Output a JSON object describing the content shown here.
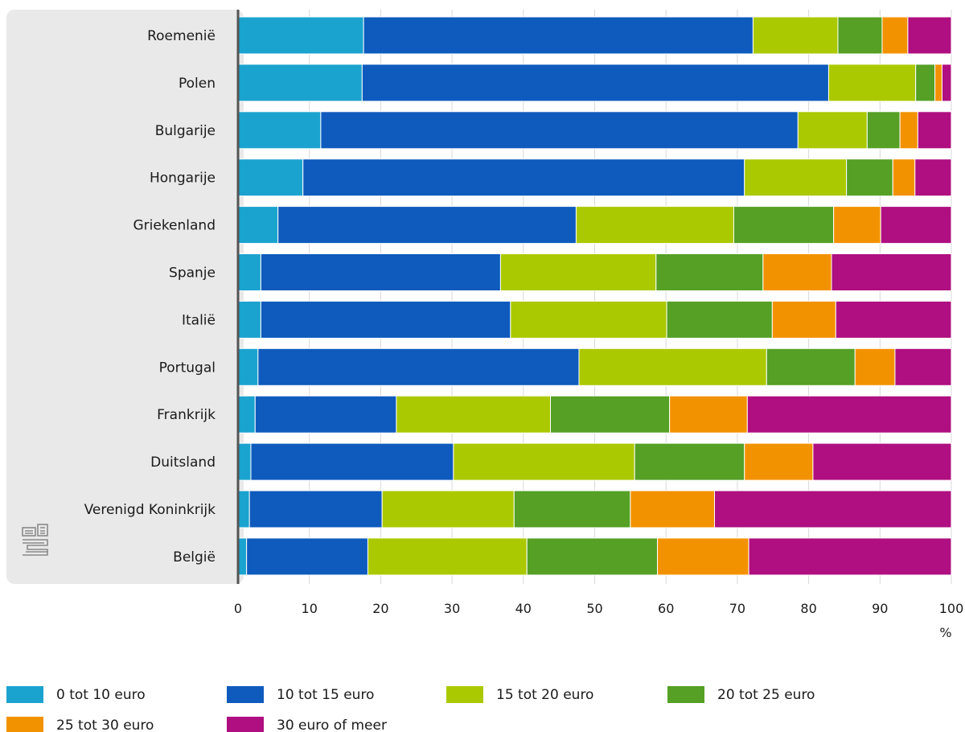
{
  "chart_data": {
    "type": "bar",
    "orientation": "horizontal",
    "stacked": true,
    "categories": [
      "Roemenië",
      "Polen",
      "Bulgarije",
      "Hongarije",
      "Griekenland",
      "Spanje",
      "Italië",
      "Portugal",
      "Frankrijk",
      "Duitsland",
      "Verenigd Koninkrijk",
      "België"
    ],
    "series": [
      {
        "name": "0 tot 10 euro",
        "color": "#1ba3cf",
        "values": [
          17.6,
          17.4,
          11.6,
          9.1,
          5.6,
          3.2,
          3.2,
          2.8,
          2.4,
          1.8,
          1.6,
          1.2
        ]
      },
      {
        "name": "10 tot 15 euro",
        "color": "#0e5bbd",
        "values": [
          54.6,
          65.4,
          66.9,
          61.9,
          41.8,
          33.6,
          35.0,
          45.0,
          19.8,
          28.4,
          18.6,
          17.0
        ]
      },
      {
        "name": "15 tot 20 euro",
        "color": "#abc900",
        "values": [
          11.9,
          12.2,
          9.7,
          14.3,
          22.1,
          21.8,
          21.9,
          26.3,
          21.6,
          25.4,
          18.5,
          22.3
        ]
      },
      {
        "name": "20 tot 25 euro",
        "color": "#55a025",
        "values": [
          6.2,
          2.7,
          4.6,
          6.5,
          14.0,
          15.0,
          14.8,
          12.4,
          16.7,
          15.4,
          16.3,
          18.3
        ]
      },
      {
        "name": "25 tot 30 euro",
        "color": "#f39200",
        "values": [
          3.6,
          1.0,
          2.5,
          3.1,
          6.6,
          9.6,
          8.9,
          5.6,
          10.9,
          9.6,
          11.8,
          12.8
        ]
      },
      {
        "name": "30 euro of meer",
        "color": "#af0f80",
        "values": [
          6.1,
          1.3,
          4.7,
          5.1,
          9.9,
          16.8,
          16.2,
          7.9,
          28.6,
          19.4,
          33.2,
          28.4
        ]
      }
    ],
    "xlim": [
      0,
      100
    ],
    "xticks": [
      0,
      10,
      20,
      30,
      40,
      50,
      60,
      70,
      80,
      90,
      100
    ],
    "xunit": "%",
    "grid": true,
    "legend_position": "bottom",
    "logo": "cbs-logo"
  }
}
